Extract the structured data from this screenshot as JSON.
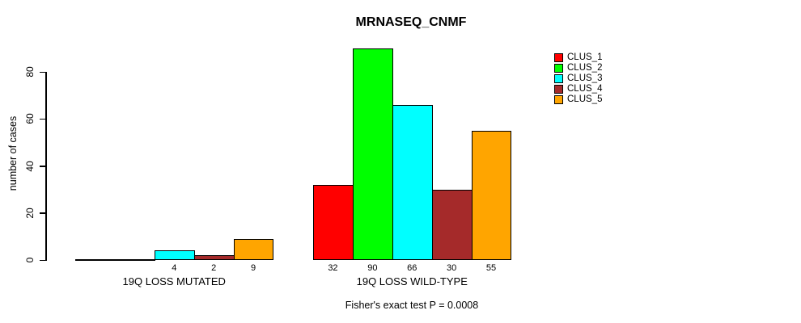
{
  "chart_data": {
    "type": "bar",
    "title": "MRNASEQ_CNMF",
    "ylabel": "number of cases",
    "xlabel": "",
    "ylim": [
      0,
      90
    ],
    "yticks": [
      0,
      20,
      40,
      60,
      80
    ],
    "grid": false,
    "legend_position": "top-right",
    "categories": [
      "19Q LOSS MUTATED",
      "19Q LOSS WILD-TYPE"
    ],
    "series": [
      {
        "name": "CLUS_1",
        "color": "#FF0000",
        "values": [
          0,
          32
        ]
      },
      {
        "name": "CLUS_2",
        "color": "#00FF00",
        "values": [
          0,
          90
        ]
      },
      {
        "name": "CLUS_3",
        "color": "#00FFFF",
        "values": [
          4,
          66
        ]
      },
      {
        "name": "CLUS_4",
        "color": "#A52A2A",
        "values": [
          2,
          30
        ]
      },
      {
        "name": "CLUS_5",
        "color": "#FFA500",
        "values": [
          9,
          55
        ]
      }
    ],
    "bar_value_labels": {
      "19Q LOSS MUTATED": [
        "",
        "",
        "4",
        "2",
        "9"
      ],
      "19Q LOSS WILD-TYPE": [
        "32",
        "90",
        "66",
        "30",
        "55"
      ]
    },
    "annotation": "Fisher's exact test P = 0.0008"
  }
}
